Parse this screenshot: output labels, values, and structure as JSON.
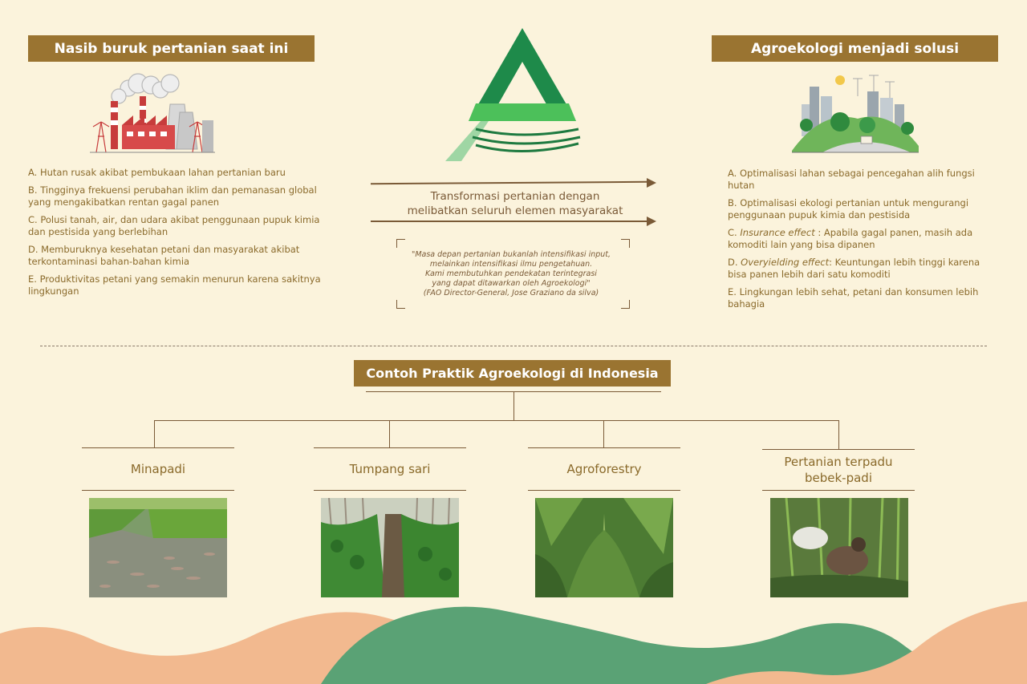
{
  "left": {
    "title": "Nasib buruk pertanian saat ini",
    "items": [
      "A. Hutan rusak akibat pembukaan lahan pertanian baru",
      "B. Tingginya frekuensi perubahan iklim dan pemanasan global yang mengakibatkan rentan gagal panen",
      "C. Polusi tanah, air, dan udara akibat penggunaan pupuk kimia dan pestisida yang berlebihan",
      "D. Memburuknya kesehatan petani dan masyarakat akibat terkontaminasi bahan-bahan kimia",
      "E. Produktivitas petani yang semakin menurun karena sakitnya lingkungan"
    ]
  },
  "right": {
    "title": "Agroekologi menjadi solusi",
    "items": [
      {
        "prefix": "A. Optimalisasi lahan sebagai pencegahan alih fungsi hutan",
        "em": "",
        "rest": ""
      },
      {
        "prefix": "B. Optimalisasi ekologi pertanian untuk mengurangi penggunaan pupuk kimia dan pestisida",
        "em": "",
        "rest": ""
      },
      {
        "prefix": "C. ",
        "em": "Insurance effect",
        "rest": " : Apabila gagal panen, masih ada komoditi lain yang bisa dipanen"
      },
      {
        "prefix": "D. ",
        "em": "Overyielding effect",
        "rest": ": Keuntungan lebih tinggi karena bisa panen lebih dari satu komoditi"
      },
      {
        "prefix": "E. Lingkungan lebih sehat, petani dan konsumen lebih bahagia",
        "em": "",
        "rest": ""
      }
    ]
  },
  "center": {
    "transform_line1": "Transformasi pertanian dengan",
    "transform_line2": "melibatkan seluruh elemen masyarakat",
    "quote_lines": [
      "\"Masa depan pertanian bukanlah intensifikasi input,",
      "melainkan intensifikasi ilmu pengetahuan.",
      "Kami membutuhkan pendekatan terintegrasi",
      "yang dapat ditawarkan oleh Agroekologi\"",
      "(FAO Director-General, Jose Graziano da silva)"
    ]
  },
  "bottom": {
    "title": "Contoh Praktik Agroekologi di Indonesia",
    "practices": [
      "Minapadi",
      "Tumpang sari",
      "Agroforestry",
      "Pertanian terpadu\nbebek-padi"
    ]
  },
  "colors": {
    "background": "#fbf3dc",
    "header": "#9a7431",
    "text": "#8a6a2b",
    "logo_dark": "#1e8a4a",
    "logo_light": "#4cc05a",
    "wave_green": "#5aa275",
    "wave_peach": "#f2b98f"
  }
}
